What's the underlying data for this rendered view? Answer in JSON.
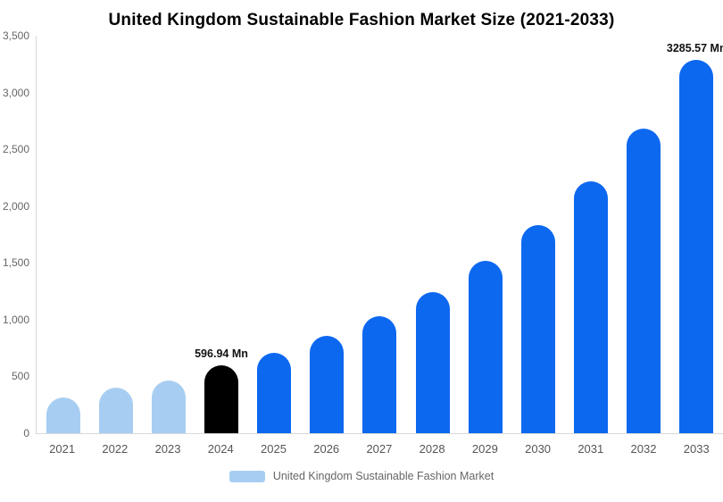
{
  "chart_data": {
    "type": "bar",
    "title": "United Kingdom Sustainable Fashion Market Size (2021-2033)",
    "categories": [
      "2021",
      "2022",
      "2023",
      "2024",
      "2025",
      "2026",
      "2027",
      "2028",
      "2029",
      "2030",
      "2031",
      "2032",
      "2033"
    ],
    "values": [
      315,
      400,
      465,
      596.94,
      705,
      855,
      1030,
      1245,
      1520,
      1830,
      2220,
      2685,
      3285.57
    ],
    "bar_colors": [
      "#a7cef2",
      "#a7cef2",
      "#a7cef2",
      "#000000",
      "#0d68f0",
      "#0d68f0",
      "#0d68f0",
      "#0d68f0",
      "#0d68f0",
      "#0d68f0",
      "#0d68f0",
      "#0d68f0",
      "#0d68f0"
    ],
    "data_labels": {
      "2024": "596.94 Mn",
      "2033": "3285.57 Mn"
    },
    "unit": "Mn",
    "ylim": [
      0,
      3500
    ],
    "y_ticks": [
      "3,500",
      "3,000",
      "2,500",
      "2,000",
      "1,500",
      "1,000",
      "500",
      "0"
    ],
    "y_tick_values": [
      3500,
      3000,
      2500,
      2000,
      1500,
      1000,
      500,
      0
    ],
    "grid": false,
    "axis_line_color": "#d9d9d9",
    "legend": {
      "label": "United Kingdom Sustainable Fashion Market",
      "swatch_color": "#a7cef2",
      "position": "bottom"
    }
  }
}
